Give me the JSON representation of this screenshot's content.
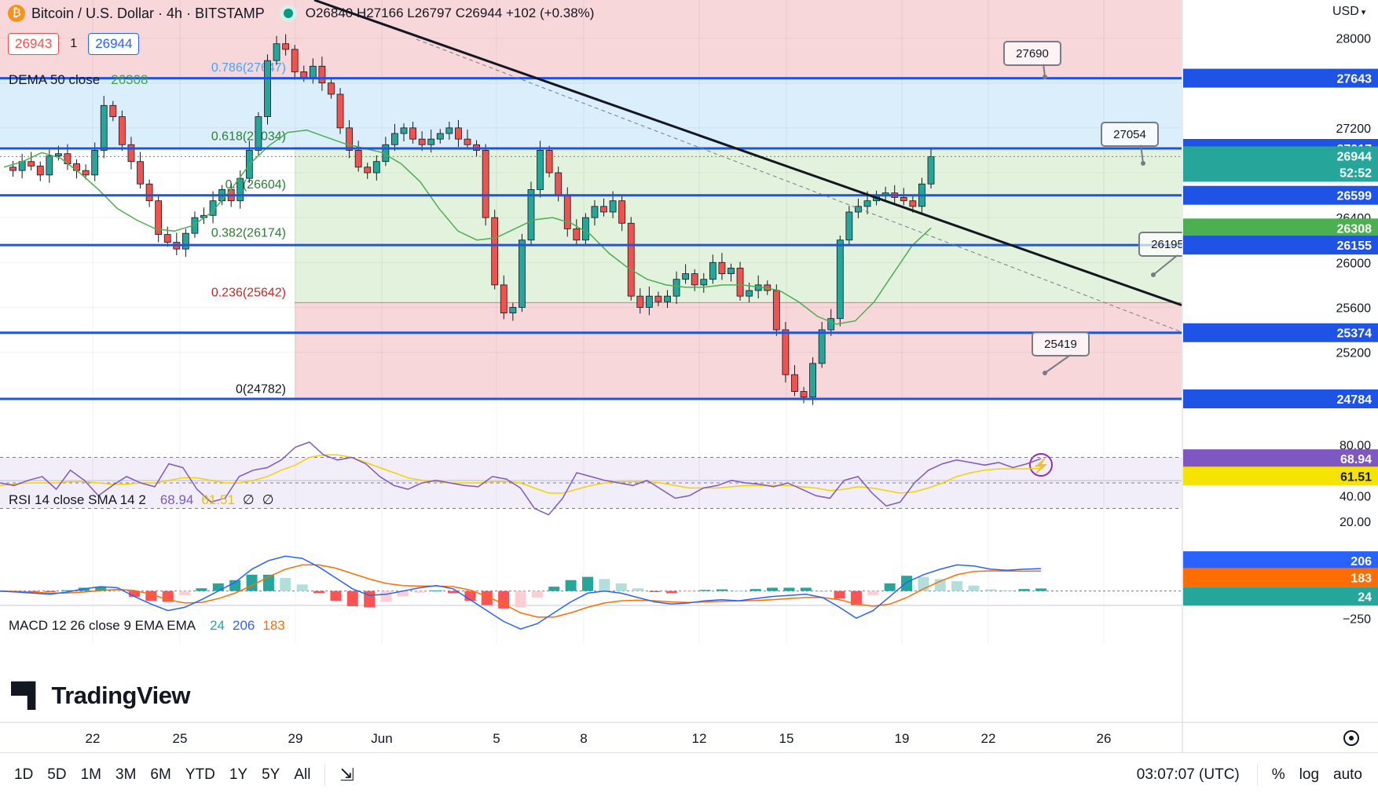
{
  "header": {
    "symbol": "Bitcoin / U.S. Dollar · 4h · BITSTAMP",
    "ohlc": "O26840 H27166 L26797 C26944 +102 (+0.38%)",
    "bid": "26943",
    "spread": "1",
    "ask": "26944",
    "dema_label": "DEMA 50 close",
    "dema_value": "26308",
    "currency": "USD"
  },
  "branding": {
    "logo_text": "TradingView"
  },
  "toolbar": {
    "ranges": [
      "1D",
      "5D",
      "1M",
      "3M",
      "6M",
      "YTD",
      "1Y",
      "5Y",
      "All"
    ],
    "time": "03:07:07 (UTC)",
    "percent": "%",
    "log": "log",
    "auto": "auto"
  },
  "colors": {
    "up": "#26a69a",
    "down": "#ef5350",
    "trend_blue": "#1e53e5",
    "dema": "#4caf50",
    "rsi": "#7e57c2",
    "rsi_sma": "#f5d100",
    "macd": "#2962ff",
    "signal": "#ff6d00"
  },
  "chart_data": [
    {
      "type": "candlestick",
      "title": "Bitcoin / U.S. Dollar · 4h · BITSTAMP",
      "ylim": [
        24700,
        28200
      ],
      "y_ticks": [
        25200,
        25600,
        26000,
        26400,
        26800,
        27200,
        27600,
        28000
      ],
      "x_ticks": [
        "22",
        "25",
        "29",
        "Jun",
        "5",
        "8",
        "12",
        "15",
        "19",
        "22",
        "26"
      ],
      "price_path": [
        26850,
        26820,
        26900,
        26860,
        26780,
        26950,
        26970,
        26880,
        26820,
        26780,
        27000,
        27400,
        27300,
        27050,
        26900,
        26700,
        26550,
        26250,
        26180,
        26120,
        26260,
        26400,
        26420,
        26550,
        26650,
        26550,
        26750,
        27000,
        27300,
        27800,
        27950,
        27900,
        27700,
        27650,
        27750,
        27600,
        27500,
        27200,
        27000,
        26850,
        26800,
        26900,
        27050,
        27150,
        27200,
        27100,
        27050,
        27100,
        27150,
        27200,
        27100,
        27050,
        27000,
        26400,
        25800,
        25550,
        25600,
        26200,
        26650,
        27000,
        26800,
        26600,
        26300,
        26200,
        26400,
        26500,
        26450,
        26550,
        26350,
        25700,
        25600,
        25700,
        25650,
        25700,
        25850,
        25900,
        25800,
        25850,
        26000,
        25900,
        25950,
        25700,
        25750,
        25800,
        25750,
        25400,
        25000,
        24850,
        24800,
        25100,
        25400,
        25500,
        26200,
        26450,
        26500,
        26550,
        26600,
        26620,
        26580,
        26550,
        26500,
        26700,
        26944
      ],
      "ohlc_last": {
        "open": 26840,
        "high": 27166,
        "low": 26797,
        "close": 26944
      },
      "dema_50": [
        26850,
        26900,
        26980,
        26930,
        26800,
        26650,
        26480,
        26380,
        26300,
        26280,
        26330,
        26450,
        26650,
        26880,
        27040,
        27160,
        27180,
        27120,
        27060,
        27020,
        26980,
        26880,
        26720,
        26480,
        26280,
        26200,
        26220,
        26300,
        26380,
        26400,
        26350,
        26250,
        26080,
        25950,
        25850,
        25800,
        25780,
        25780,
        25800,
        25800,
        25780,
        25750,
        25650,
        25520,
        25450,
        25480,
        25650,
        25900,
        26150,
        26308
      ],
      "fib_levels": [
        {
          "label": "0(24782)",
          "value": 24782
        },
        {
          "label": "0.236(25642)",
          "value": 25642
        },
        {
          "label": "0.382(26174)",
          "value": 26174
        },
        {
          "label": "0.5(26604)",
          "value": 26604
        },
        {
          "label": "0.618(27034)",
          "value": 27034
        },
        {
          "label": "0.786(27647)",
          "value": 27647
        }
      ],
      "horizontal_lines": [
        27643,
        27017,
        26599,
        26155,
        25374,
        24784
      ],
      "callouts": [
        "27690",
        "27054",
        "26195",
        "25419"
      ],
      "price_tags": [
        {
          "text": "27643",
          "kind": "line"
        },
        {
          "text": "27017",
          "kind": "line"
        },
        {
          "text": "26944",
          "kind": "last"
        },
        {
          "text": "52:52",
          "kind": "timer"
        },
        {
          "text": "26599",
          "kind": "line"
        },
        {
          "text": "26308",
          "kind": "dema"
        },
        {
          "text": "26155",
          "kind": "line"
        },
        {
          "text": "25374",
          "kind": "line"
        },
        {
          "text": "24784",
          "kind": "line"
        }
      ]
    },
    {
      "type": "line",
      "title": "RSI 14 close SMA 14 2",
      "values_label": [
        "68.94",
        "61.51",
        "∅",
        "∅"
      ],
      "ylim": [
        10,
        90
      ],
      "y_ticks": [
        "80.00",
        "40.00",
        "20.00"
      ],
      "tags": [
        "68.94",
        "61.51"
      ],
      "series": [
        {
          "name": "RSI",
          "values": [
            50,
            48,
            52,
            55,
            45,
            60,
            52,
            40,
            48,
            55,
            50,
            47,
            65,
            62,
            45,
            35,
            38,
            55,
            60,
            62,
            68,
            78,
            82,
            72,
            68,
            70,
            65,
            55,
            48,
            45,
            50,
            52,
            50,
            48,
            47,
            55,
            53,
            46,
            30,
            25,
            38,
            58,
            55,
            52,
            50,
            48,
            52,
            45,
            38,
            40,
            46,
            48,
            52,
            50,
            49,
            47,
            50,
            45,
            40,
            38,
            52,
            55,
            42,
            32,
            35,
            50,
            60,
            65,
            68,
            66,
            64,
            66,
            62,
            65,
            69
          ]
        },
        {
          "name": "SMA",
          "values": [
            48,
            49,
            50,
            50,
            50,
            51,
            51,
            50,
            49,
            49,
            50,
            50,
            52,
            54,
            54,
            52,
            50,
            50,
            52,
            55,
            60,
            64,
            70,
            72,
            72,
            70,
            66,
            62,
            58,
            54,
            52,
            51,
            50,
            50,
            50,
            51,
            51,
            50,
            46,
            42,
            42,
            45,
            48,
            50,
            51,
            51,
            51,
            50,
            48,
            46,
            46,
            46,
            47,
            48,
            48,
            48,
            48,
            47,
            46,
            44,
            45,
            47,
            46,
            44,
            42,
            43,
            46,
            50,
            55,
            58,
            60,
            61,
            61,
            61,
            61.5
          ]
        }
      ]
    },
    {
      "type": "bar",
      "title": "MACD 12 26 close 9 EMA EMA",
      "values_label": [
        "24",
        "206",
        "183"
      ],
      "ylim": [
        -450,
        380
      ],
      "y_ticks": [
        "−250"
      ],
      "tags": [
        "206",
        "183",
        "24"
      ],
      "series": [
        {
          "name": "MACD",
          "values": [
            0,
            -10,
            -20,
            -30,
            -10,
            20,
            40,
            30,
            -50,
            -120,
            -180,
            -150,
            -80,
            0,
            80,
            200,
            280,
            320,
            300,
            220,
            120,
            20,
            -40,
            -30,
            0,
            30,
            50,
            20,
            -80,
            -180,
            -280,
            -350,
            -300,
            -200,
            -100,
            -20,
            0,
            -20,
            -60,
            -100,
            -120,
            -110,
            -90,
            -80,
            -90,
            -70,
            -50,
            -40,
            -30,
            -60,
            -150,
            -250,
            -180,
            -50,
            80,
            150,
            200,
            240,
            230,
            200,
            190,
            200,
            206
          ]
        },
        {
          "name": "Signal",
          "values": [
            0,
            -5,
            -12,
            -20,
            -18,
            -10,
            5,
            15,
            5,
            -30,
            -80,
            -110,
            -105,
            -70,
            -20,
            50,
            130,
            200,
            240,
            240,
            210,
            160,
            110,
            70,
            50,
            45,
            45,
            40,
            10,
            -50,
            -120,
            -200,
            -240,
            -240,
            -200,
            -150,
            -110,
            -90,
            -85,
            -90,
            -100,
            -105,
            -100,
            -95,
            -92,
            -88,
            -80,
            -70,
            -60,
            -60,
            -80,
            -120,
            -140,
            -120,
            -60,
            20,
            90,
            150,
            180,
            185,
            183,
            182,
            183
          ]
        }
      ]
    }
  ]
}
